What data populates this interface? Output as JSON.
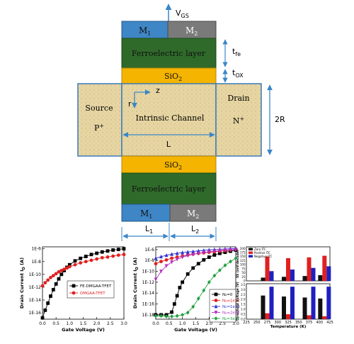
{
  "structure": {
    "vgs": "V",
    "vgs_sub": "GS",
    "gate_top_left": "M",
    "gate_top_left_sub": "1",
    "gate_top_right": "M",
    "gate_top_right_sub": "2",
    "ferro_top": "Ferroelectric layer",
    "oxide_top": "SiO",
    "oxide_top_sub": "2",
    "source": "Source",
    "source_doping": "P",
    "source_doping_sup": "+",
    "drain": "Drain",
    "drain_doping": "N",
    "drain_doping_sup": "+",
    "channel": "Intrinsic Channel",
    "axis_z": "z",
    "axis_r": "r",
    "length": "L",
    "radius": "2R",
    "oxide_bottom": "SiO",
    "oxide_bottom_sub": "2",
    "ferro_bottom": "Ferroelectric layer",
    "gate_bottom_left": "M",
    "gate_bottom_left_sub": "1",
    "gate_bottom_right": "M",
    "gate_bottom_right_sub": "2",
    "l1": "L",
    "l1_sub": "1",
    "l2": "L",
    "l2_sub": "2",
    "tfe": "t",
    "tfe_sub": "fe",
    "tox": "t",
    "tox_sub": "OX",
    "colors": {
      "m1": "#3f86c6",
      "m2": "#7a7a7a",
      "ferro": "#2f6a2a",
      "oxide": "#f4b400",
      "channel": "#e8d9a8",
      "arrow": "#3a86c8"
    }
  },
  "chart_data": [
    {
      "type": "line",
      "xlabel": "Gate Voltage (V)",
      "ylabel": "Drain Current I",
      "ylabel_sub": "D",
      "ylabel_unit": " (A)",
      "xticks": [
        "0.0",
        "0.5",
        "1.0",
        "1.5",
        "2.0",
        "2.5",
        "3.0"
      ],
      "yticks": [
        "1E-6",
        "1E-8",
        "1E-10",
        "1E-12",
        "1E-14",
        "1E-16"
      ],
      "xlim": [
        0,
        3
      ],
      "ylim_log10": [
        -17,
        -5.7
      ],
      "series": [
        {
          "name": "FE-DMGAA-TFET",
          "color": "#000000",
          "marker": "square",
          "x": [
            0,
            0.1,
            0.2,
            0.3,
            0.4,
            0.5,
            0.6,
            0.7,
            0.8,
            0.9,
            1.0,
            1.2,
            1.4,
            1.6,
            1.8,
            2.0,
            2.2,
            2.4,
            2.6,
            2.8,
            3.0
          ],
          "log10y": [
            -16.8,
            -15.6,
            -14.5,
            -13.4,
            -12.4,
            -11.5,
            -10.7,
            -10.0,
            -9.4,
            -8.9,
            -8.5,
            -7.9,
            -7.5,
            -7.2,
            -6.9,
            -6.7,
            -6.5,
            -6.35,
            -6.2,
            -6.1,
            -6.0
          ]
        },
        {
          "name": "DMGAA-TFET",
          "color": "#e02020",
          "marker": "circle",
          "x": [
            0,
            0.1,
            0.2,
            0.3,
            0.4,
            0.5,
            0.6,
            0.7,
            0.8,
            0.9,
            1.0,
            1.2,
            1.4,
            1.6,
            1.8,
            2.0,
            2.2,
            2.4,
            2.6,
            2.8,
            3.0
          ],
          "log10y": [
            -11.8,
            -11.3,
            -10.9,
            -10.5,
            -10.2,
            -9.9,
            -9.6,
            -9.4,
            -9.2,
            -9.0,
            -8.8,
            -8.5,
            -8.2,
            -8.0,
            -7.8,
            -7.6,
            -7.4,
            -7.3,
            -7.15,
            -7.0,
            -6.9
          ]
        }
      ]
    },
    {
      "type": "line",
      "xlabel": "Gate Voltage (V)",
      "ylabel": "Drain Current I",
      "ylabel_sub": "D",
      "ylabel_unit": " (A)",
      "xticks": [
        "0.0",
        "0.5",
        "1.0",
        "1.5",
        "2.0",
        "2.5",
        "3.0"
      ],
      "yticks": [
        "1E-6",
        "1E-8",
        "1E-10",
        "1E-12",
        "1E-14",
        "1E-16",
        "1E-18"
      ],
      "xlim": [
        0,
        3
      ],
      "ylim_log10": [
        -18.8,
        -5.5
      ],
      "series": [
        {
          "name": "N₂=0",
          "color": "#000000",
          "marker": "square",
          "x": [
            0,
            0.2,
            0.4,
            0.6,
            0.7,
            0.8,
            0.9,
            1.0,
            1.2,
            1.4,
            1.6,
            1.8,
            2.0,
            2.2,
            2.4,
            2.6,
            2.8,
            3.0
          ],
          "log10y": [
            -18.0,
            -18.0,
            -18.0,
            -17.5,
            -16.0,
            -14.5,
            -13.0,
            -12.0,
            -10.5,
            -9.4,
            -8.6,
            -7.9,
            -7.4,
            -7.0,
            -6.7,
            -6.5,
            -6.3,
            -6.1
          ]
        },
        {
          "name": "N₂=1e12",
          "color": "#e02020",
          "marker": "circle",
          "x": [
            0,
            0.2,
            0.4,
            0.6,
            0.8,
            1.0,
            1.2,
            1.4,
            1.6,
            1.8,
            2.0,
            2.2,
            2.4,
            2.6,
            2.8,
            3.0
          ],
          "log10y": [
            -8.6,
            -8.2,
            -7.9,
            -7.6,
            -7.4,
            -7.2,
            -7.0,
            -6.85,
            -6.7,
            -6.6,
            -6.5,
            -6.4,
            -6.3,
            -6.2,
            -6.1,
            -6.0
          ]
        },
        {
          "name": "N₂=1e13",
          "color": "#3030d0",
          "marker": "triangle",
          "x": [
            0,
            0.2,
            0.4,
            0.6,
            0.8,
            1.0,
            1.2,
            1.4,
            1.6,
            1.8,
            2.0,
            2.2,
            2.4,
            2.6,
            2.8,
            3.0
          ],
          "log10y": [
            -7.6,
            -7.3,
            -7.05,
            -6.85,
            -6.7,
            -6.55,
            -6.45,
            -6.35,
            -6.25,
            -6.15,
            -6.05,
            -6.0,
            -5.95,
            -5.9,
            -5.85,
            -5.8
          ]
        },
        {
          "name": "N₂=2e12",
          "color": "#b030c0",
          "marker": "triangle-down",
          "x": [
            0,
            0.2,
            0.4,
            0.6,
            0.8,
            1.0,
            1.2,
            1.4,
            1.6,
            1.8,
            2.0,
            2.2,
            2.4,
            2.6,
            2.8,
            3.0
          ],
          "log10y": [
            -11.5,
            -10.0,
            -9.0,
            -8.3,
            -7.8,
            -7.4,
            -7.1,
            -6.9,
            -6.7,
            -6.55,
            -6.4,
            -6.3,
            -6.2,
            -6.1,
            -6.05,
            -6.0
          ]
        },
        {
          "name": "N₂=3e12",
          "color": "#20a040",
          "marker": "diamond",
          "x": [
            0,
            0.2,
            0.4,
            0.6,
            0.8,
            1.0,
            1.2,
            1.4,
            1.6,
            1.8,
            2.0,
            2.2,
            2.4,
            2.6,
            2.8,
            3.0
          ],
          "log10y": [
            -18.2,
            -18.2,
            -18.3,
            -18.3,
            -18.2,
            -18.0,
            -17.6,
            -16.5,
            -15.0,
            -13.5,
            -12.0,
            -10.8,
            -9.8,
            -8.9,
            -8.2,
            -7.6
          ]
        }
      ]
    },
    {
      "type": "bar",
      "top_ylabel": "SS (mV/decade)",
      "top_yticks": [
        "0",
        "25",
        "50",
        "75",
        "100",
        "125",
        "150",
        "175",
        "200"
      ],
      "top_ylim": [
        0,
        210
      ],
      "bottom_ylabel": "Threshold Voltage (V)",
      "bottom_yticks": [
        "0.0",
        "0.5",
        "1.0",
        "1.5",
        "2.0",
        "2.5",
        "3.0",
        "3.5"
      ],
      "bottom_ylim": [
        0,
        3.6
      ],
      "xlabel": "Temperature (K)",
      "xticks": [
        "225",
        "250",
        "275",
        "300",
        "325",
        "350",
        "375",
        "400",
        "425"
      ],
      "x_numeric": [
        225,
        250,
        275,
        300,
        325,
        350,
        375,
        400,
        425
      ],
      "series": [
        {
          "name": "Zero ITC",
          "color": "#111111",
          "top_values": [
            20,
            25,
            30,
            35
          ],
          "bottom_values": [
            2.4,
            2.3,
            2.2,
            2.1
          ]
        },
        {
          "name": "Positive ITC",
          "color": "#e02020",
          "top_values": [
            150,
            140,
            145,
            155
          ],
          "bottom_values": [
            0.6,
            0.5,
            0.4,
            0.3
          ]
        },
        {
          "name": "Negative ITC",
          "color": "#2020c0",
          "top_values": [
            60,
            70,
            80,
            90
          ],
          "bottom_values": [
            3.3,
            3.3,
            3.3,
            3.3
          ]
        }
      ],
      "categories_x": [
        275,
        325,
        375,
        412
      ]
    }
  ]
}
